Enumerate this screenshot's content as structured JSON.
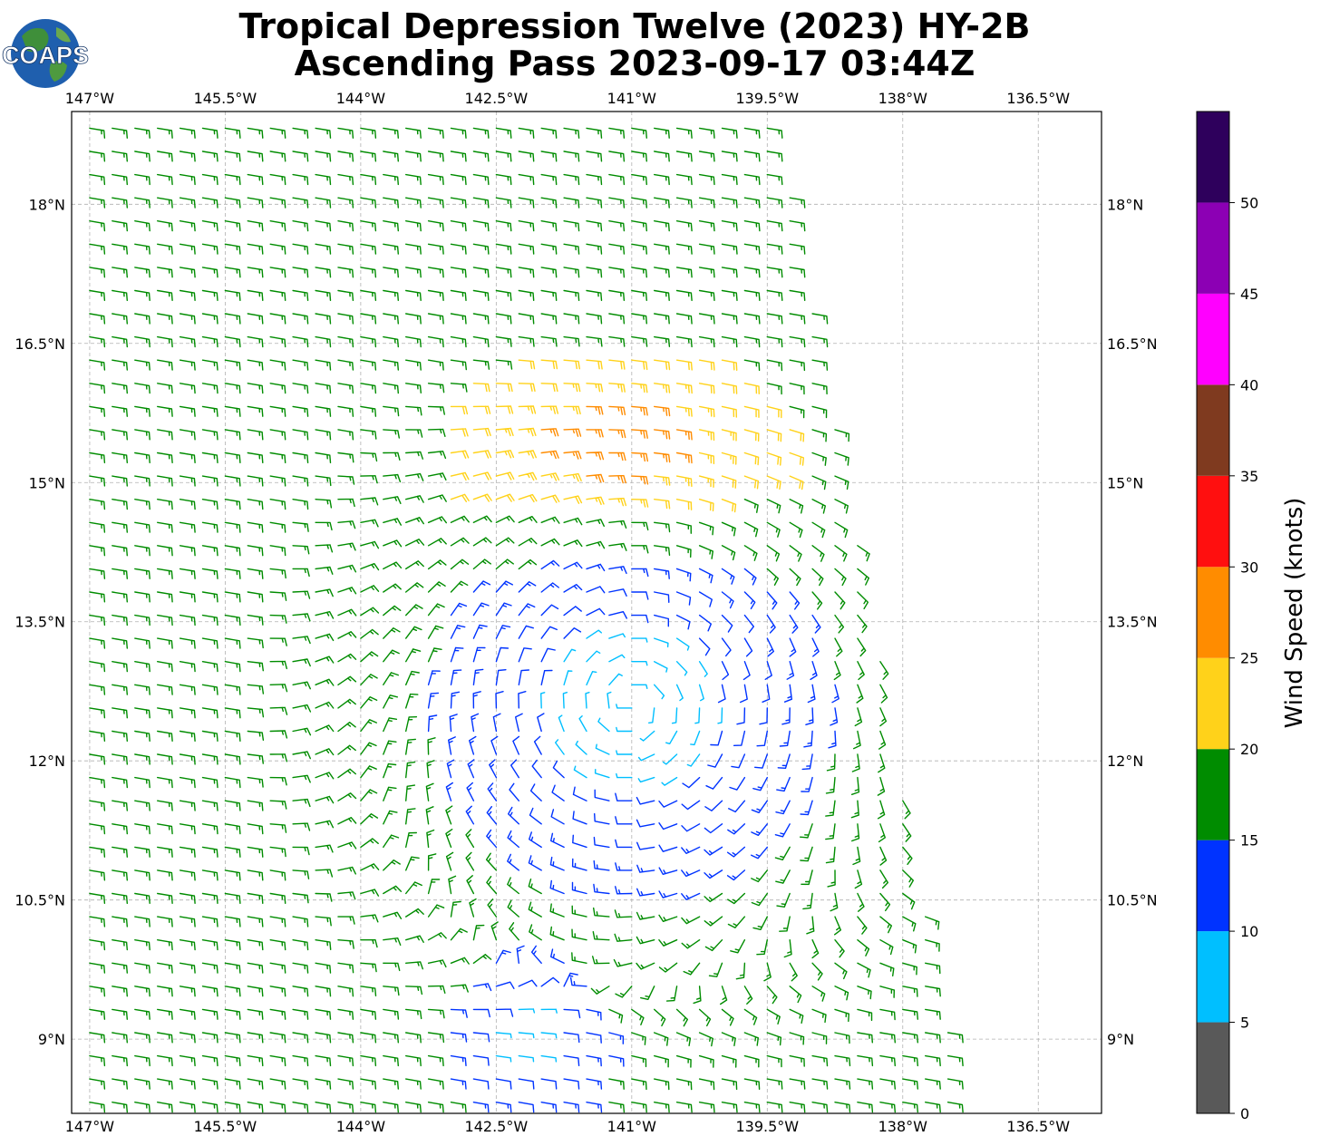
{
  "header": {
    "title_line1": "Tropical Depression Twelve (2023) HY-2B",
    "title_line2": "Ascending Pass 2023-09-17 03:44Z",
    "logo_text": "COAPS"
  },
  "map": {
    "lon_range": [
      -147.2,
      -135.8
    ],
    "lat_range": [
      8.2,
      19.0
    ],
    "lon_ticks": [
      {
        "value": -147.0,
        "label": "147°W"
      },
      {
        "value": -145.5,
        "label": "145.5°W"
      },
      {
        "value": -144.0,
        "label": "144°W"
      },
      {
        "value": -142.5,
        "label": "142.5°W"
      },
      {
        "value": -141.0,
        "label": "141°W"
      },
      {
        "value": -139.5,
        "label": "139.5°W"
      },
      {
        "value": -138.0,
        "label": "138°W"
      },
      {
        "value": -136.5,
        "label": "136.5°W"
      }
    ],
    "lat_ticks": [
      {
        "value": 18.0,
        "label": "18°N"
      },
      {
        "value": 16.5,
        "label": "16.5°N"
      },
      {
        "value": 15.0,
        "label": "15°N"
      },
      {
        "value": 13.5,
        "label": "13.5°N"
      },
      {
        "value": 12.0,
        "label": "12°N"
      },
      {
        "value": 10.5,
        "label": "10.5°N"
      },
      {
        "value": 9.0,
        "label": "9°N"
      }
    ],
    "swath": {
      "west_lon": -147.0,
      "east_lon_at_top": -139.4,
      "east_lon_at_bottom": -137.3
    },
    "center": {
      "lon": -141.0,
      "lat": 12.6
    },
    "calm_center": {
      "lon": -142.2,
      "lat": 9.0
    }
  },
  "colorbar": {
    "title": "Wind Speed (knots)",
    "bins": [
      {
        "from": 0,
        "to": 5,
        "color": "#595959"
      },
      {
        "from": 5,
        "to": 10,
        "color": "#00bfff"
      },
      {
        "from": 10,
        "to": 15,
        "color": "#0033ff"
      },
      {
        "from": 15,
        "to": 20,
        "color": "#008c00"
      },
      {
        "from": 20,
        "to": 25,
        "color": "#ffd21a"
      },
      {
        "from": 25,
        "to": 30,
        "color": "#ff8c00"
      },
      {
        "from": 30,
        "to": 35,
        "color": "#ff0f0f"
      },
      {
        "from": 35,
        "to": 40,
        "color": "#7f3a1f"
      },
      {
        "from": 40,
        "to": 45,
        "color": "#ff00ff"
      },
      {
        "from": 45,
        "to": 50,
        "color": "#8c00b4"
      },
      {
        "from": 50,
        "to": 55,
        "color": "#2e005c"
      }
    ],
    "tick_labels": [
      "0",
      "5",
      "10",
      "15",
      "20",
      "25",
      "30",
      "35",
      "40",
      "45",
      "50"
    ]
  }
}
